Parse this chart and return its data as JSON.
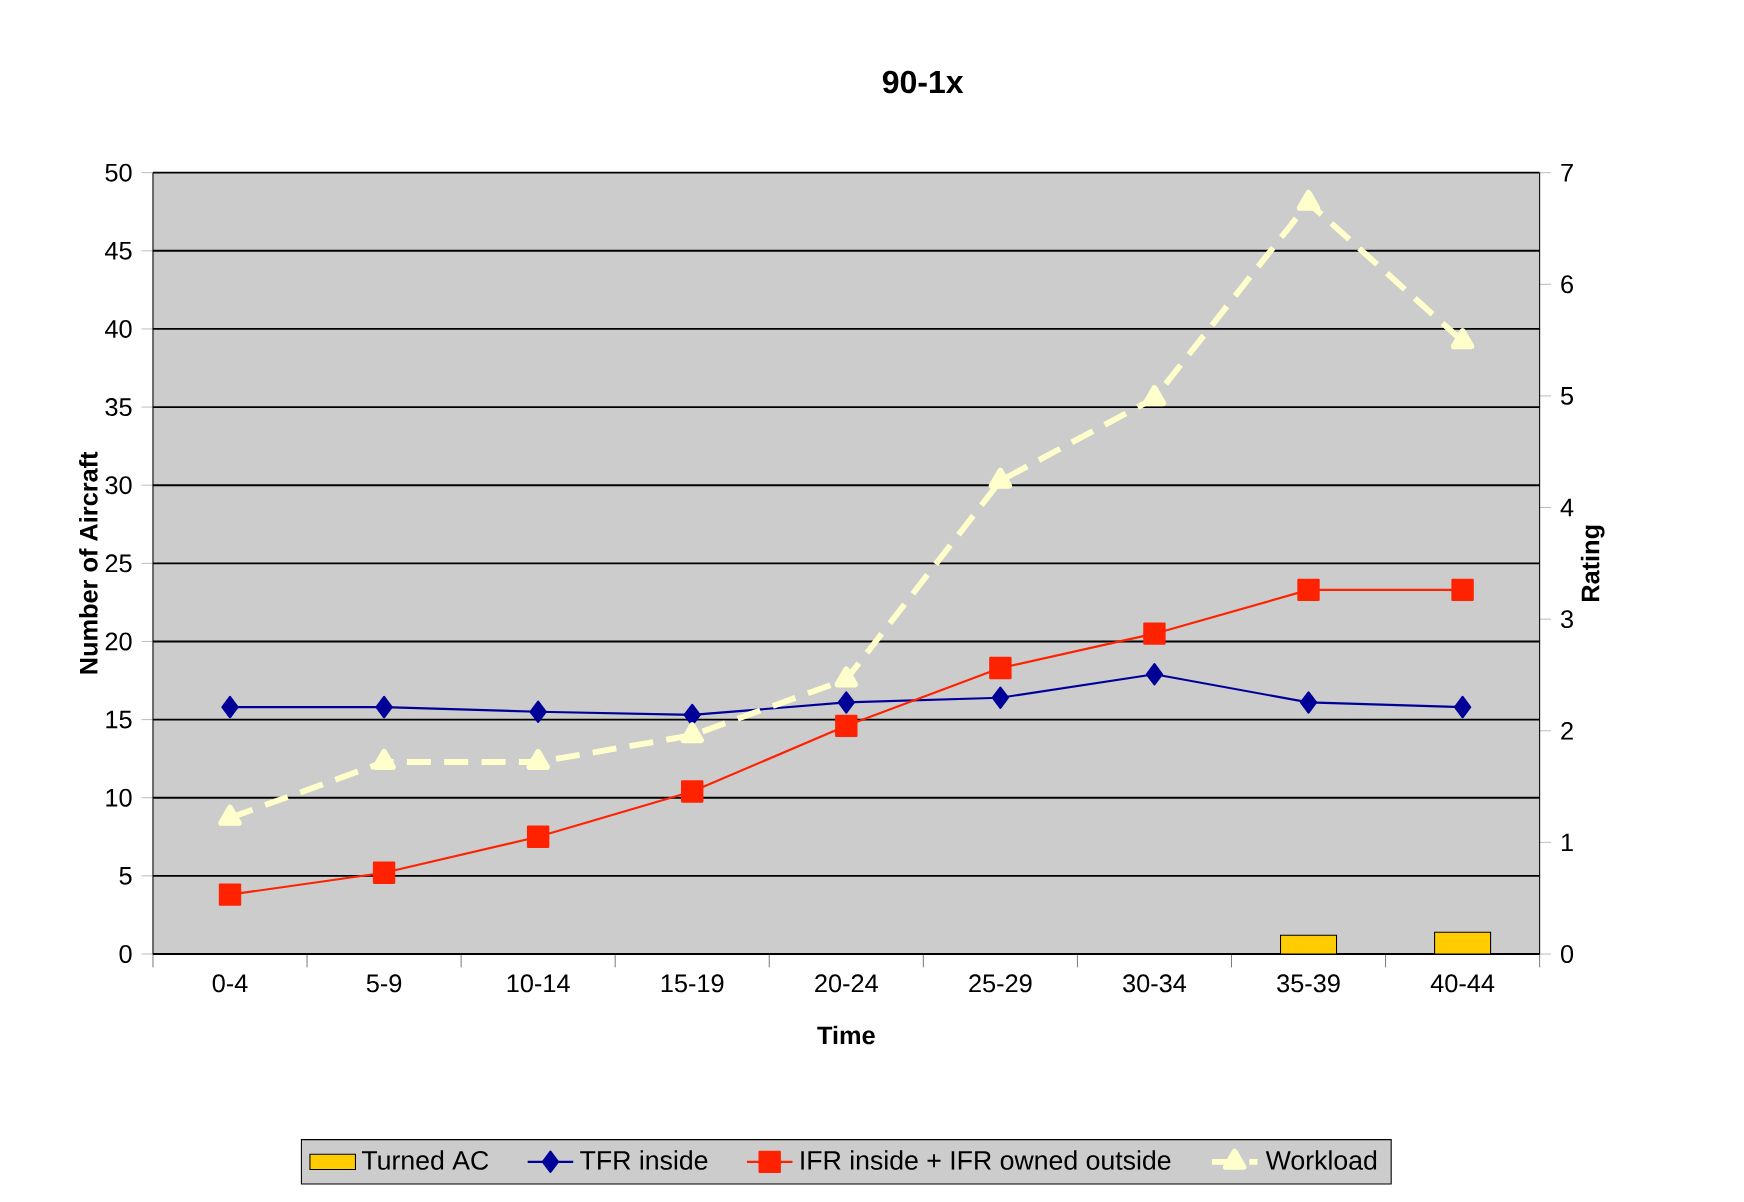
{
  "chart_data": {
    "type": "line",
    "title": "90-1x",
    "xlabel": "Time",
    "ylabel": "Number of Aircraft",
    "y2label": "Rating",
    "categories": [
      "0-4",
      "5-9",
      "10-14",
      "15-19",
      "20-24",
      "25-29",
      "30-34",
      "35-39",
      "40-44"
    ],
    "series": [
      {
        "name": "Turned AC",
        "type": "bar",
        "color": "#ffcc00",
        "values": [
          null,
          null,
          null,
          null,
          null,
          null,
          null,
          1.2,
          1.4
        ]
      },
      {
        "name": "TFR inside",
        "color": "#000099",
        "marker": "diamond",
        "line_style": "solid",
        "values": [
          15.8,
          15.8,
          15.5,
          15.3,
          16.1,
          16.4,
          17.9,
          16.1,
          15.8
        ]
      },
      {
        "name": "IFR inside + IFR owned outside",
        "color": "#ff2200",
        "marker": "square",
        "line_style": "solid",
        "values": [
          3.8,
          5.2,
          7.5,
          10.4,
          14.6,
          18.3,
          20.5,
          23.3,
          23.3
        ]
      },
      {
        "name": "Workload",
        "axis": "y2",
        "color": "#ffffcc",
        "marker": "triangle",
        "line_style": "dashed",
        "values": [
          1.22,
          1.72,
          1.72,
          1.96,
          2.46,
          4.24,
          4.98,
          6.73,
          5.49
        ]
      }
    ],
    "ylim": [
      0,
      50
    ],
    "yticks": [
      0,
      5,
      10,
      15,
      20,
      25,
      30,
      35,
      40,
      45,
      50
    ],
    "y2lim": [
      0,
      7
    ],
    "y2ticks": [
      0,
      1,
      2,
      3,
      4,
      5,
      6,
      7
    ],
    "grid": "y",
    "legend": "bottom"
  }
}
